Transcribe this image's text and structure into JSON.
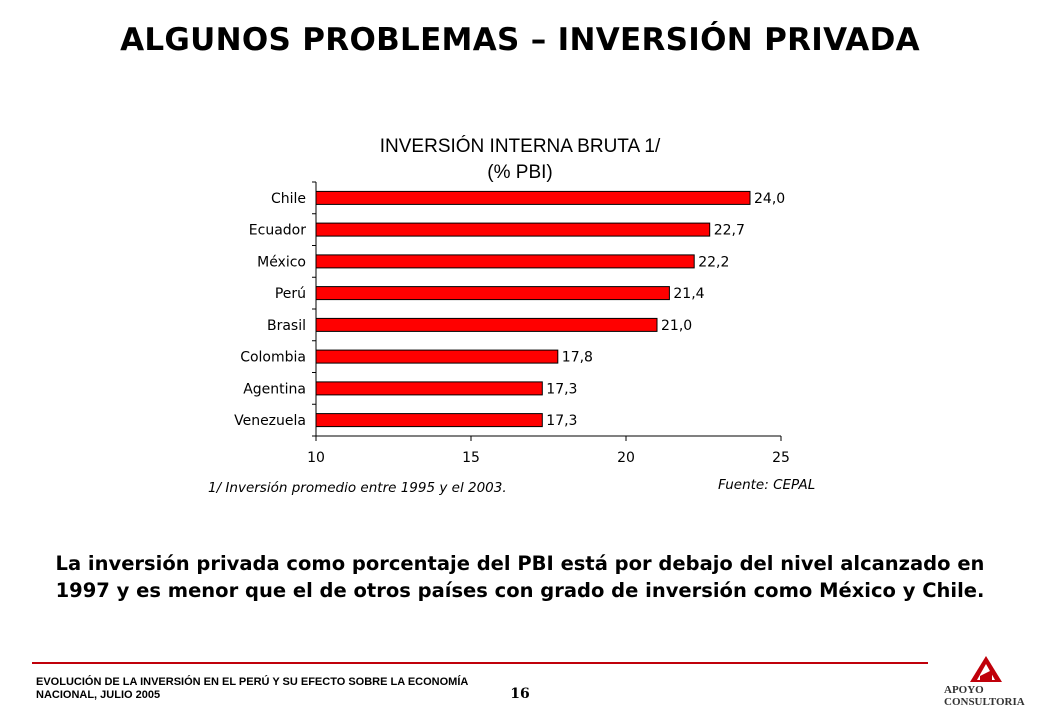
{
  "slide": {
    "title": "ALGUNOS PROBLEMAS – INVERSIÓN PRIVADA",
    "conclusion": "La inversión privada como porcentaje del PBI está por debajo del nivel alcanzado en 1997 y es menor que el de otros países con grado de inversión como México y Chile."
  },
  "footer": {
    "text": "EVOLUCIÓN DE LA INVERSIÓN EN EL PERÚ Y SU EFECTO SOBRE LA ECONOMÍA NACIONAL, JULIO 2005",
    "page_number": "16",
    "logo_line1": "APOYO",
    "logo_line2": "CONSULTORIA"
  },
  "chart_data": {
    "type": "bar",
    "orientation": "horizontal",
    "title": "INVERSIÓN INTERNA BRUTA 1/",
    "subtitle": "(% PBI)",
    "categories": [
      "Chile",
      "Ecuador",
      "México",
      "Perú",
      "Brasil",
      "Colombia",
      "Agentina",
      "Venezuela"
    ],
    "values": [
      24.0,
      22.7,
      22.2,
      21.4,
      21.0,
      17.8,
      17.3,
      17.3
    ],
    "data_labels": [
      "24,0",
      "22,7",
      "22,2",
      "21,4",
      "21,0",
      "17,8",
      "17,3",
      "17,3"
    ],
    "xlim": [
      10,
      25
    ],
    "x_ticks": [
      10,
      15,
      20,
      25
    ],
    "x_tick_labels": [
      "10",
      "15",
      "20",
      "25"
    ],
    "bar_color": "#ff0000",
    "grid": false,
    "legend": "none",
    "footnote": "1/ Inversión promedio entre 1995 y el 2003.",
    "source": "Fuente: CEPAL"
  },
  "colors": {
    "accent_line": "#c0000a",
    "bar_fill": "#ff0000"
  }
}
